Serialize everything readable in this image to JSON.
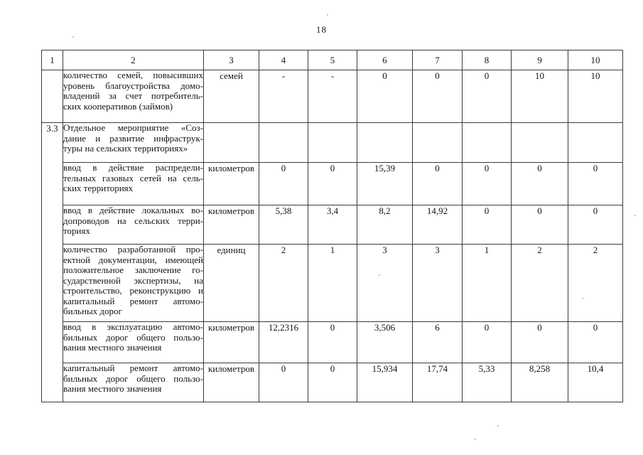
{
  "page": {
    "number": "18"
  },
  "table": {
    "headers": [
      "1",
      "2",
      "3",
      "4",
      "5",
      "6",
      "7",
      "8",
      "9",
      "10"
    ],
    "rows": [
      {
        "num": "",
        "label_lines": [
          "количество семей, повысивших",
          "уровень благоустройства домо-",
          "владений за счет потребитель-",
          "ских кооперативов (займов)"
        ],
        "unit": "семей",
        "values": [
          "-",
          "-",
          "0",
          "0",
          "0",
          "10",
          "10"
        ]
      },
      {
        "num": "3.3",
        "label_lines": [
          "Отдельное мероприятие «Соз-",
          "дание и развитие инфраструк-",
          "туры на сельских территориях»"
        ],
        "unit": "",
        "values": [
          "",
          "",
          "",
          "",
          "",
          "",
          ""
        ]
      },
      {
        "num": "",
        "label_lines": [
          "ввод в действие распредели-",
          "тельных газовых сетей на сель-",
          "ских территориях"
        ],
        "unit": "километров",
        "values": [
          "0",
          "0",
          "15,39",
          "0",
          "0",
          "0",
          "0"
        ]
      },
      {
        "num": "",
        "label_lines": [
          "ввод в действие локальных во-",
          "допроводов на сельских терри-",
          "ториях"
        ],
        "unit": "километров",
        "values": [
          "5,38",
          "3,4",
          "8,2",
          "14,92",
          "0",
          "0",
          "0"
        ]
      },
      {
        "num": "",
        "label_lines": [
          "количество разработанной про-",
          "ектной документации, имеющей",
          "положительное заключение го-",
          "сударственной экспертизы, на",
          "строительство, реконструкцию и",
          "капитальный ремонт автомо-",
          "бильных дорог"
        ],
        "unit": "единиц",
        "values": [
          "2",
          "1",
          "3",
          "3",
          "1",
          "2",
          "2"
        ]
      },
      {
        "num": "",
        "label_lines": [
          "ввод в эксплуатацию автомо-",
          "бильных дорог общего пользо-",
          "вания местного значения"
        ],
        "unit": "километров",
        "values": [
          "12,2316",
          "0",
          "3,506",
          "6",
          "0",
          "0",
          "0"
        ]
      },
      {
        "num": "",
        "label_lines": [
          "капитальный ремонт автомо-",
          "бильных дорог общего пользо-",
          "вания местного значения"
        ],
        "unit": "километров",
        "values": [
          "0",
          "0",
          "15,934",
          "17,74",
          "5,33",
          "8,258",
          "10,4"
        ]
      }
    ]
  }
}
